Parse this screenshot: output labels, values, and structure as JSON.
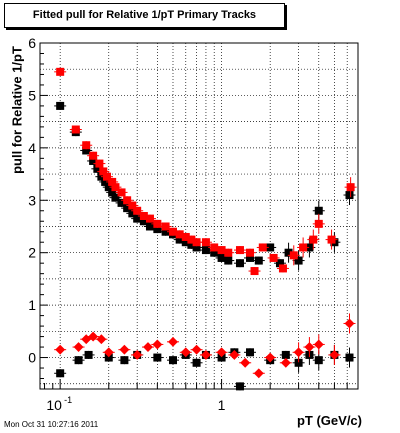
{
  "chart_data": {
    "type": "scatter",
    "title": "Fitted pull for Relative 1/pT  Primary Tracks",
    "xlabel": "pT (GeV/c)",
    "ylabel": "pull for Relative 1/pT",
    "x_scale": "log",
    "xlim": [
      0.075,
      7.0
    ],
    "ylim": [
      -0.6,
      6.0
    ],
    "x_tick_labels": [
      {
        "value": 0.1,
        "label": "10",
        "exp": "-1"
      },
      {
        "value": 1,
        "label": "1",
        "exp": ""
      }
    ],
    "y_ticks": [
      0,
      1,
      2,
      3,
      4,
      5,
      6
    ],
    "grid": true,
    "colors": {
      "series_black": "#000000",
      "series_red": "#ff0000"
    },
    "series": [
      {
        "color": "black",
        "points": [
          [
            0.1,
            4.8
          ],
          [
            0.125,
            4.3
          ],
          [
            0.145,
            3.95
          ],
          [
            0.16,
            3.75
          ],
          [
            0.17,
            3.6
          ],
          [
            0.18,
            3.45
          ],
          [
            0.19,
            3.35
          ],
          [
            0.2,
            3.25
          ],
          [
            0.21,
            3.15
          ],
          [
            0.22,
            3.05
          ],
          [
            0.24,
            2.95
          ],
          [
            0.26,
            2.85
          ],
          [
            0.28,
            2.75
          ],
          [
            0.3,
            2.65
          ],
          [
            0.33,
            2.6
          ],
          [
            0.36,
            2.5
          ],
          [
            0.4,
            2.45
          ],
          [
            0.45,
            2.4
          ],
          [
            0.5,
            2.35
          ],
          [
            0.55,
            2.25
          ],
          [
            0.6,
            2.2
          ],
          [
            0.65,
            2.15
          ],
          [
            0.7,
            2.1
          ],
          [
            0.8,
            2.05
          ],
          [
            0.9,
            2.0
          ],
          [
            1.0,
            1.9
          ],
          [
            1.1,
            1.85
          ],
          [
            1.3,
            1.8
          ],
          [
            1.5,
            1.9
          ],
          [
            1.7,
            1.85
          ],
          [
            2.0,
            2.1
          ],
          [
            2.3,
            1.8
          ],
          [
            2.6,
            2.0
          ],
          [
            3.0,
            1.85
          ],
          [
            3.5,
            2.1
          ],
          [
            4.0,
            2.8
          ],
          [
            5.0,
            2.2
          ],
          [
            6.2,
            3.1
          ],
          [
            0.1,
            -0.3
          ],
          [
            0.13,
            -0.05
          ],
          [
            0.15,
            0.05
          ],
          [
            0.2,
            0.0
          ],
          [
            0.25,
            -0.05
          ],
          [
            0.3,
            0.05
          ],
          [
            0.4,
            0.0
          ],
          [
            0.5,
            -0.05
          ],
          [
            0.6,
            0.05
          ],
          [
            0.7,
            -0.1
          ],
          [
            0.8,
            0.05
          ],
          [
            1.0,
            0.0
          ],
          [
            1.2,
            0.1
          ],
          [
            1.3,
            -0.55
          ],
          [
            1.5,
            0.1
          ],
          [
            2.0,
            -0.05
          ],
          [
            2.5,
            0.05
          ],
          [
            3.0,
            -0.1
          ],
          [
            3.5,
            0.05
          ],
          [
            4.0,
            -0.05
          ],
          [
            5.0,
            0.05
          ],
          [
            6.2,
            0.0
          ]
        ]
      },
      {
        "color": "red",
        "points": [
          [
            0.1,
            5.45
          ],
          [
            0.125,
            4.35
          ],
          [
            0.145,
            4.05
          ],
          [
            0.16,
            3.85
          ],
          [
            0.175,
            3.7
          ],
          [
            0.185,
            3.55
          ],
          [
            0.195,
            3.45
          ],
          [
            0.21,
            3.35
          ],
          [
            0.22,
            3.25
          ],
          [
            0.24,
            3.15
          ],
          [
            0.26,
            3.0
          ],
          [
            0.28,
            2.9
          ],
          [
            0.3,
            2.8
          ],
          [
            0.33,
            2.7
          ],
          [
            0.36,
            2.65
          ],
          [
            0.4,
            2.55
          ],
          [
            0.45,
            2.5
          ],
          [
            0.5,
            2.4
          ],
          [
            0.55,
            2.35
          ],
          [
            0.6,
            2.3
          ],
          [
            0.65,
            2.25
          ],
          [
            0.7,
            2.2
          ],
          [
            0.8,
            2.2
          ],
          [
            0.9,
            2.1
          ],
          [
            1.0,
            2.05
          ],
          [
            1.1,
            2.0
          ],
          [
            1.3,
            2.05
          ],
          [
            1.5,
            2.0
          ],
          [
            1.6,
            1.65
          ],
          [
            1.8,
            2.1
          ],
          [
            2.1,
            1.9
          ],
          [
            2.4,
            1.7
          ],
          [
            2.8,
            1.95
          ],
          [
            3.2,
            2.1
          ],
          [
            3.7,
            2.25
          ],
          [
            4.0,
            2.55
          ],
          [
            4.8,
            2.25
          ],
          [
            6.3,
            3.25
          ],
          [
            0.1,
            0.15
          ],
          [
            0.13,
            0.2
          ],
          [
            0.145,
            0.35
          ],
          [
            0.16,
            0.4
          ],
          [
            0.18,
            0.35
          ],
          [
            0.2,
            0.1
          ],
          [
            0.25,
            0.15
          ],
          [
            0.3,
            0.05
          ],
          [
            0.35,
            0.2
          ],
          [
            0.4,
            0.25
          ],
          [
            0.5,
            0.3
          ],
          [
            0.6,
            0.1
          ],
          [
            0.7,
            0.15
          ],
          [
            0.8,
            0.05
          ],
          [
            1.0,
            0.1
          ],
          [
            1.2,
            0.05
          ],
          [
            1.4,
            -0.1
          ],
          [
            1.7,
            -0.3
          ],
          [
            2.0,
            0.0
          ],
          [
            2.5,
            -0.1
          ],
          [
            3.0,
            0.1
          ],
          [
            3.5,
            0.2
          ],
          [
            4.0,
            0.25
          ],
          [
            5.0,
            0.05
          ],
          [
            6.2,
            0.65
          ]
        ]
      }
    ],
    "timestamp": "Mon Oct 31 10:27:16 2011"
  }
}
